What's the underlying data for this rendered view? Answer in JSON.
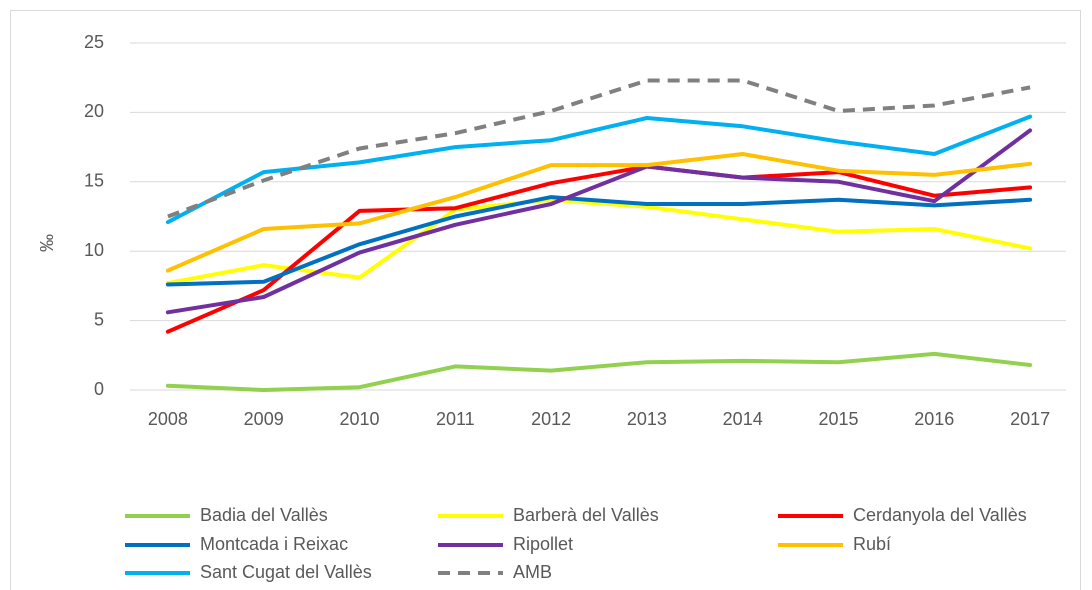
{
  "chart_data": {
    "type": "line",
    "y_label": "‰",
    "categories": [
      "2008",
      "2009",
      "2010",
      "2011",
      "2012",
      "2013",
      "2014",
      "2015",
      "2016",
      "2017"
    ],
    "ylim": [
      0,
      25
    ],
    "yticks": [
      0,
      5,
      10,
      15,
      20,
      25
    ],
    "grid": true,
    "legend": "bottom",
    "series": [
      {
        "name": "Badia del Vallès",
        "color": "#92d050",
        "values": [
          0.3,
          0.0,
          0.2,
          1.7,
          1.4,
          2.0,
          2.1,
          2.0,
          2.6,
          1.8
        ]
      },
      {
        "name": "Barberà del Vallès",
        "color": "#ffff00",
        "values": [
          7.7,
          9.0,
          8.1,
          13.0,
          13.7,
          13.2,
          12.3,
          11.4,
          11.6,
          10.2
        ]
      },
      {
        "name": "Cerdanyola del Vallès",
        "color": "#ff0000",
        "values": [
          4.2,
          7.2,
          12.9,
          13.1,
          14.9,
          16.1,
          15.3,
          15.7,
          14.0,
          14.6
        ]
      },
      {
        "name": "Montcada i Reixac",
        "color": "#0070c0",
        "values": [
          7.6,
          7.8,
          10.5,
          12.5,
          13.9,
          13.4,
          13.4,
          13.7,
          13.3,
          13.7
        ]
      },
      {
        "name": "Ripollet",
        "color": "#7030a0",
        "values": [
          5.6,
          6.7,
          9.9,
          11.9,
          13.4,
          16.1,
          15.3,
          15.0,
          13.6,
          18.7
        ]
      },
      {
        "name": "Rubí",
        "color": "#ffc000",
        "values": [
          8.6,
          11.6,
          12.0,
          13.9,
          16.2,
          16.2,
          17.0,
          15.8,
          15.5,
          16.3
        ]
      },
      {
        "name": "Sant Cugat del Vallès",
        "color": "#00b0f0",
        "values": [
          12.1,
          15.7,
          16.4,
          17.5,
          18.0,
          19.6,
          19.0,
          17.9,
          17.0,
          19.7
        ]
      },
      {
        "name": "AMB",
        "color": "#808080",
        "dashed": true,
        "values": [
          12.5,
          15.1,
          17.4,
          18.5,
          20.1,
          22.3,
          22.3,
          20.1,
          20.5,
          21.8
        ]
      }
    ]
  }
}
